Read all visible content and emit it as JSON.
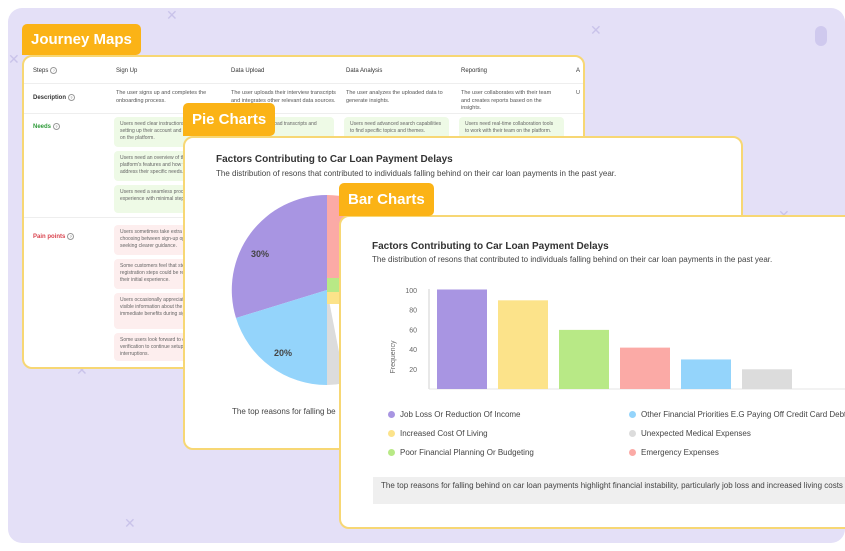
{
  "colors": {
    "tag": "#fbb316",
    "card_border": "#f7d774",
    "background": "#e4e0f7",
    "bar_colors": [
      "#a895e2",
      "#fce38a",
      "#b8e986",
      "#fbaaa6",
      "#94d4fb",
      "#dcdcdc"
    ]
  },
  "journey": {
    "tag": "Journey Maps",
    "headers": [
      "Steps",
      "Sign Up",
      "Data Upload",
      "Data Analysis",
      "Reporting",
      "A"
    ],
    "description_label": "Description",
    "descriptions": [
      "The user signs up and completes the onboarding process.",
      "The user uploads their interview transcripts and integrates other relevant data sources.",
      "The user analyzes the uploaded data to generate insights.",
      "The user collaborates with their team and creates reports based on the insights.",
      "U"
    ],
    "needs_label": "Needs",
    "needs": [
      "Users need clear instructions during setting up their account and get started on the platform.",
      "Users need an overview of the platform's features and how they address their specific needs.",
      "Users need a seamless process experience with minimal steps."
    ],
    "needs_col2": "Users need to upload transcripts and metadata.",
    "needs_col3": "Users need advanced search capabilities to find specific topics and themes.",
    "needs_col4": "Users need real-time collaboration tools to work with their team on the platform.",
    "pain_label": "Pain points",
    "pains": [
      "Users sometimes take extra time choosing between sign-up options, seeking clearer guidance.",
      "Some customers feel that steps in the registration steps could be reduced in their initial experience.",
      "Users occasionally appreciate more visible information about the platform's immediate benefits during sign-up.",
      "Some users look forward to email verification to continue setup without interruptions."
    ]
  },
  "pie": {
    "tag": "Pie Charts",
    "title": "Factors Contributing to Car Loan Payment Delays",
    "subtitle": "The distribution of resons that contributed to individuals falling behind on their car loan payments in the past year.",
    "footer": "The top reasons for falling be",
    "labels": [
      "30%",
      "20%"
    ]
  },
  "bar": {
    "tag": "Bar Charts",
    "summary": "The top reasons for falling behind on car loan payments highlight financial instability, particularly job loss and increased living costs"
  },
  "chart_data": {
    "type": "bar",
    "title": "Factors Contributing to Car Loan Payment Delays",
    "subtitle": "The distribution of resons that contributed to individuals falling behind on their car loan payments in the past year.",
    "ylabel": "Frequency",
    "xlabel": "",
    "ylim": [
      0,
      100
    ],
    "yticks": [
      100,
      80,
      60,
      40,
      20
    ],
    "categories": [
      "Job Loss Or Reduction Of Income",
      "Increased Cost Of Living",
      "Poor Financial Planning Or Budgeting",
      "Emergency Expenses",
      "Other Financial Priorities E.G Paying Off Credit Card Debt",
      "Unexpected Medical Expenses"
    ],
    "values": [
      101,
      90,
      60,
      42,
      30,
      20
    ],
    "legend_labels": [
      "Job Loss Or Reduction Of Income",
      "Increased Cost Of Living",
      "Poor Financial Planning Or Budgeting",
      "Other Financial Priorities E.G Paying Off Credit Card Debt",
      "Unexpected Medical Expenses",
      "Emergency Expenses"
    ],
    "legend": "bottom"
  }
}
